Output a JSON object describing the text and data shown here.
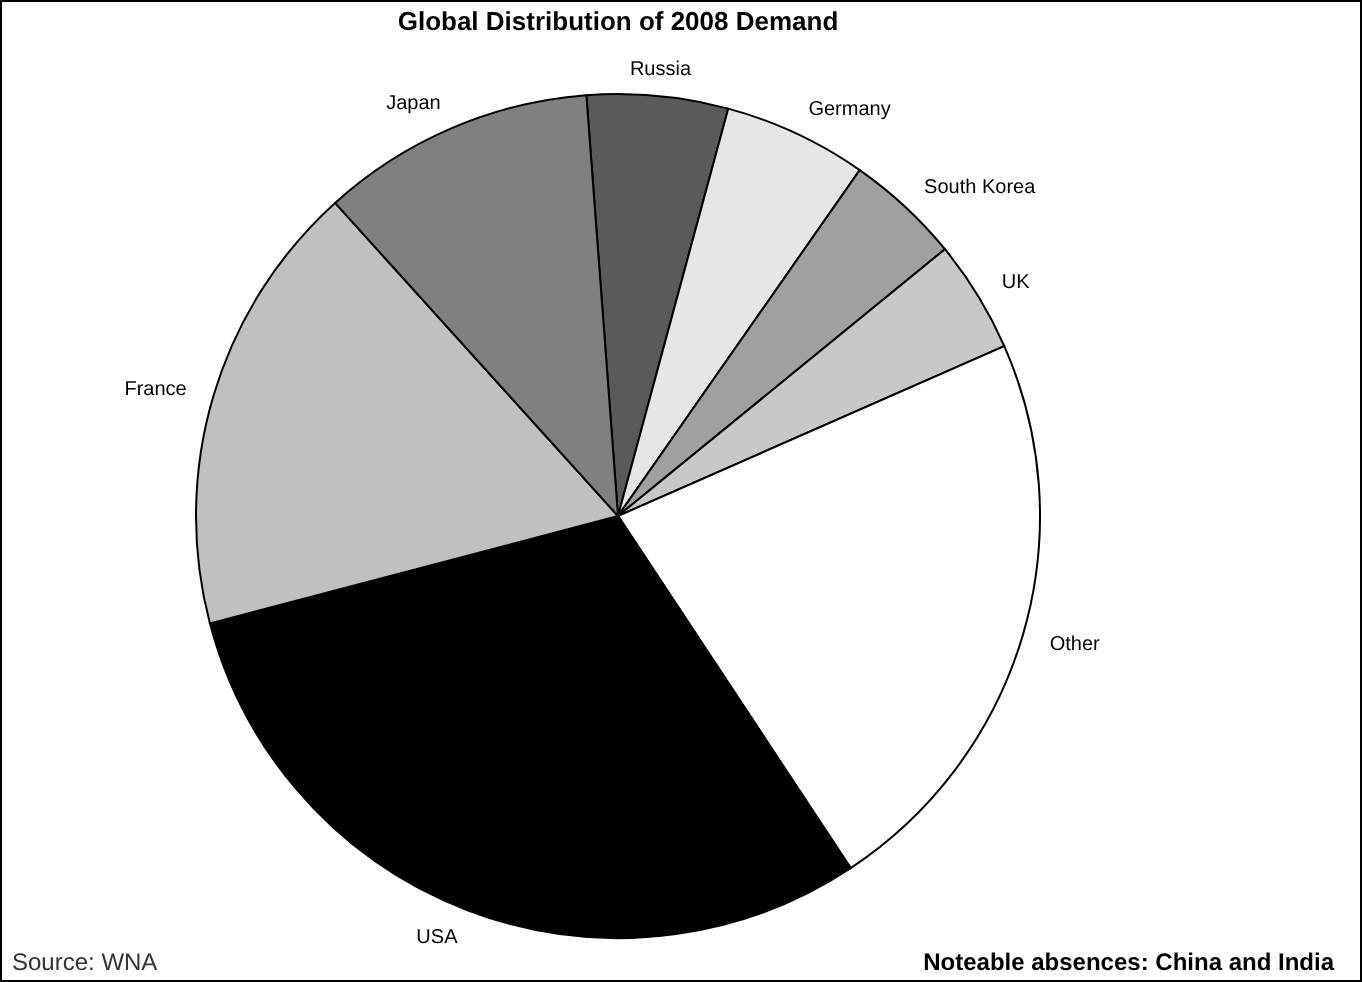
{
  "chart_data": {
    "type": "pie",
    "title": "Global Distribution of 2008 Demand",
    "categories": [
      "Russia",
      "Germany",
      "South Korea",
      "UK",
      "Other",
      "USA",
      "France",
      "Japan"
    ],
    "values": [
      5.4,
      5.5,
      4.4,
      4.3,
      22.3,
      30.2,
      17.4,
      10.5
    ],
    "colors": [
      "#5a5a5a",
      "#e6e6e6",
      "#a0a0a0",
      "#c8c8c8",
      "#ffffff",
      "#000000",
      "#c0c0c0",
      "#808080"
    ],
    "annotations": [
      "Source: WNA",
      "Noteable absences: China and India"
    ]
  }
}
